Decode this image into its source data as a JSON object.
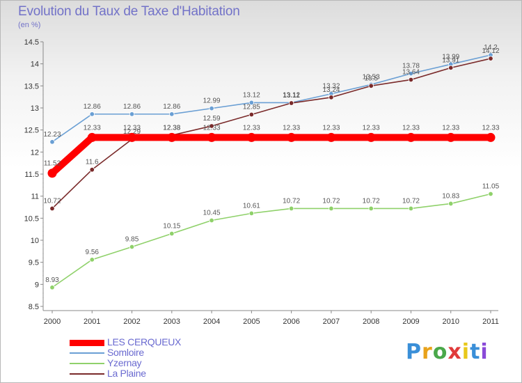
{
  "chart_data": {
    "type": "line",
    "title": "Evolution du Taux de Taxe d'Habitation",
    "subtitle": "(en %)",
    "x": [
      "2000",
      "2001",
      "2002",
      "2003",
      "2004",
      "2005",
      "2006",
      "2007",
      "2008",
      "2009",
      "2010",
      "2011"
    ],
    "ylim": [
      8.5,
      14.5
    ],
    "yticks": [
      "8.5",
      "9",
      "9.5",
      "10",
      "10.5",
      "11",
      "11.5",
      "12",
      "12.5",
      "13",
      "13.5",
      "14",
      "14.5"
    ],
    "grid": false,
    "legend_position": "bottom-left",
    "series": [
      {
        "name": "LES CERQUEUX",
        "color": "#ff0000",
        "values": [
          11.52,
          12.33,
          12.33,
          12.33,
          12.33,
          12.33,
          12.33,
          12.33,
          12.33,
          12.33,
          12.33,
          12.33
        ],
        "labels": [
          "11.52",
          "12.33",
          "12.33",
          "12.33",
          "12.33",
          "12.33",
          "12.33",
          "12.33",
          "12.33",
          "12.33",
          "12.33",
          "12.33"
        ]
      },
      {
        "name": "Somloire",
        "color": "#6a9fd4",
        "values": [
          12.23,
          12.86,
          12.86,
          12.86,
          12.99,
          13.12,
          13.12,
          13.32,
          13.53,
          13.78,
          13.99,
          14.2
        ],
        "labels": [
          "12.23",
          "12.86",
          "12.86",
          "12.86",
          "12.99",
          "13.12",
          "13.12",
          "13.32",
          "13.53",
          "13.78",
          "13.99",
          "14.2"
        ]
      },
      {
        "name": "Yzernay",
        "color": "#8fd16a",
        "values": [
          8.93,
          9.56,
          9.85,
          10.15,
          10.45,
          10.61,
          10.72,
          10.72,
          10.72,
          10.72,
          10.83,
          11.05
        ],
        "labels": [
          "8.93",
          "9.56",
          "9.85",
          "10.15",
          "10.45",
          "10.61",
          "10.72",
          "10.72",
          "10.72",
          "10.72",
          "10.83",
          "11.05"
        ]
      },
      {
        "name": "La Plaine",
        "color": "#7a2a2a",
        "values": [
          10.72,
          11.6,
          12.29,
          12.38,
          12.59,
          12.85,
          13.11,
          13.24,
          13.5,
          13.64,
          13.91,
          14.12
        ],
        "labels": [
          "10.72",
          "11.6",
          "12.29",
          "12.38",
          "12.59",
          "12.85",
          "13.11",
          "13.24",
          "13.5",
          "13.64",
          "13.91",
          "14.12"
        ]
      }
    ]
  },
  "brand": {
    "letters": [
      "P",
      "r",
      "o",
      "x",
      "i",
      "t",
      "i"
    ],
    "colors": [
      "#3a8fd8",
      "#e8a21a",
      "#4aa84a",
      "#e03a3a",
      "#e8c81a",
      "#3a8fd8",
      "#8a4ad8"
    ]
  }
}
